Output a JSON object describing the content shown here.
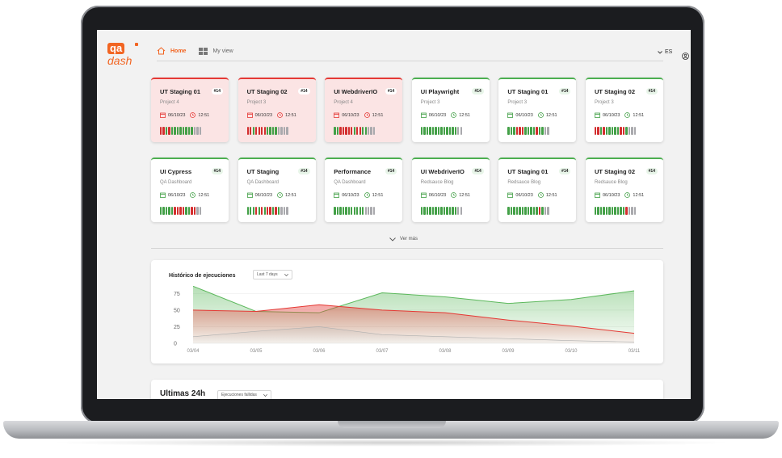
{
  "header": {
    "logo_top": "qa",
    "logo_bottom": "dash",
    "nav": [
      {
        "label": "Home",
        "icon": "home-icon",
        "active": true
      },
      {
        "label": "My view",
        "icon": "grid-view-icon",
        "active": false
      }
    ],
    "language": "ES",
    "colors": {
      "accent": "#f26522"
    }
  },
  "cards": [
    {
      "title": "UT Staging 01",
      "badge": "#14",
      "project": "Project 4",
      "date": "06/10/23",
      "time": "12:51",
      "status": "fail",
      "bars": "rrgrggggggggnnn"
    },
    {
      "title": "UT Staging 02",
      "badge": "#14",
      "project": "Project 3",
      "date": "06/10/23",
      "time": "12:51",
      "status": "fail",
      "bars": "rrgrrrrggggnnnn"
    },
    {
      "title": "UI WebdriverIO",
      "badge": "#14",
      "project": "Project 4",
      "date": "06/10/23",
      "time": "12:51",
      "status": "fail",
      "bars": "ggrrrrrgrrggnnn"
    },
    {
      "title": "UI Playwright",
      "badge": "#14",
      "project": "Project 3",
      "date": "06/10/23",
      "time": "12:51",
      "status": "pass",
      "bars": "gggggggggggggnn"
    },
    {
      "title": "UT Staging 01",
      "badge": "#14",
      "project": "Project 3",
      "date": "06/10/23",
      "time": "12:51",
      "status": "pass",
      "bars": "gggrrrggggrggnn"
    },
    {
      "title": "UT Staging 02",
      "badge": "#14",
      "project": "Project 3",
      "date": "06/10/23",
      "time": "12:51",
      "status": "pass",
      "bars": "rrgrgggggrrgnnn"
    },
    {
      "title": "UI Cypress",
      "badge": "#14",
      "project": "QA Dashboard",
      "date": "06/10/23",
      "time": "12:51",
      "status": "pass",
      "bars": "gggggrrrrggrrnn"
    },
    {
      "title": "UT Staging",
      "badge": "#14",
      "project": "QA Dashboard",
      "date": "06/10/23",
      "time": "12:51",
      "status": "pass",
      "bars": "gggrgrgrrgrgnnn"
    },
    {
      "title": "Performance",
      "badge": "#14",
      "project": "QA Dashboard",
      "date": "06/10/23",
      "time": "12:51",
      "status": "pass",
      "bars": "gggggggggggnnnn"
    },
    {
      "title": "UI WebdriverIO",
      "badge": "#14",
      "project": "Redsauce Blog",
      "date": "06/10/23",
      "time": "12:51",
      "status": "pass",
      "bars": "gggggggggggggnn"
    },
    {
      "title": "UT Staging 01",
      "badge": "#14",
      "project": "Redsauce Blog",
      "date": "06/10/23",
      "time": "12:51",
      "status": "pass",
      "bars": "gggggggggggrgnn"
    },
    {
      "title": "UT Staging 02",
      "badge": "#14",
      "project": "Redsauce Blog",
      "date": "06/10/23",
      "time": "12:51",
      "status": "pass",
      "bars": "gggggggggggrnnn"
    }
  ],
  "see_more": "Ver más",
  "history": {
    "title": "Histórico de ejecuciones",
    "range_select": "Last 7 days"
  },
  "chart_data": {
    "type": "area",
    "x": [
      "03/04",
      "03/05",
      "03/06",
      "03/07",
      "03/08",
      "03/09",
      "03/10",
      "03/11"
    ],
    "yticks": [
      0,
      25,
      50,
      75
    ],
    "ylim": [
      0,
      90
    ],
    "grid": true,
    "series": [
      {
        "values": [
          86,
          48,
          46,
          76,
          70,
          60,
          66,
          79
        ],
        "color": "#5cb85c"
      },
      {
        "values": [
          50,
          48,
          58,
          50,
          46,
          35,
          26,
          15
        ],
        "color": "#e53935"
      },
      {
        "values": [
          10,
          18,
          25,
          13,
          10,
          7,
          4,
          2
        ],
        "color": "#b0b0b0"
      }
    ]
  },
  "last24": {
    "title": "Ultimas 24h",
    "filter_select": "Ejecuciones fallidas"
  }
}
